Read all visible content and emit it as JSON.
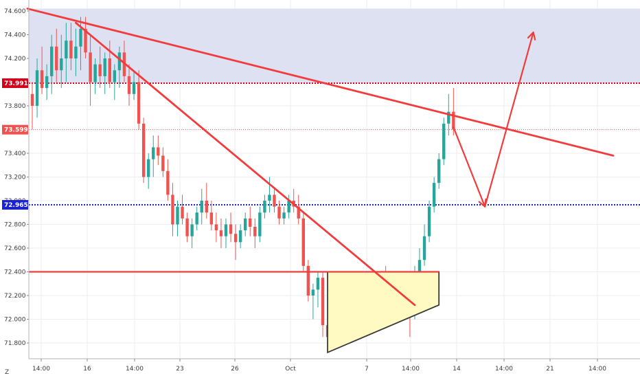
{
  "chart_data": {
    "type": "candlestick",
    "title": "",
    "xlabel": "",
    "ylabel": "",
    "ylim": [
      71.7,
      74.62
    ],
    "y_ticks": [
      "74.600",
      "74.400",
      "74.200",
      "74.000",
      "73.800",
      "73.400",
      "73.200",
      "73.000",
      "72.800",
      "72.600",
      "72.400",
      "72.200",
      "72.000",
      "71.800"
    ],
    "x_ticks": [
      "14:00",
      "16",
      "14:00",
      "23",
      "26",
      "Oct",
      "7",
      "14:00",
      "14",
      "14:00",
      "21",
      "14:00"
    ],
    "corner_label": "Z",
    "grid": true,
    "colors": {
      "up": "#26a69a",
      "down": "#ef5350",
      "drawing": "#f23b3b",
      "zone_fill": "#dde1f2",
      "triangle_fill": "#fffac2",
      "triangle_edge": "#3a3a3a",
      "level_red": "#d0021b",
      "level_blue": "#1a22d8"
    },
    "price_levels": [
      {
        "value": 73.991,
        "label": "73.991",
        "color": "#d0021b",
        "style": "dotted-thick"
      },
      {
        "value": 73.599,
        "label": "73.599",
        "color": "#ef5350",
        "style": "dotted-thin"
      },
      {
        "value": 72.965,
        "label": "72.965",
        "color": "#1a22d8",
        "style": "dotted-thick"
      }
    ],
    "resistance_zone": {
      "from": 73.991,
      "to": 74.62
    },
    "horizontal_support": 72.4,
    "candles": [
      [
        73.9,
        74.0,
        73.6,
        73.8
      ],
      [
        73.8,
        74.2,
        73.7,
        74.1
      ],
      [
        74.1,
        74.3,
        73.9,
        73.95
      ],
      [
        73.95,
        74.15,
        73.85,
        74.05
      ],
      [
        74.05,
        74.4,
        73.9,
        74.3
      ],
      [
        74.3,
        74.45,
        74.0,
        74.1
      ],
      [
        74.1,
        74.4,
        73.95,
        74.2
      ],
      [
        74.2,
        74.5,
        74.0,
        74.35
      ],
      [
        74.35,
        74.5,
        74.1,
        74.2
      ],
      [
        74.2,
        74.45,
        74.05,
        74.3
      ],
      [
        74.3,
        74.55,
        74.1,
        74.45
      ],
      [
        74.45,
        74.55,
        74.2,
        74.25
      ],
      [
        74.25,
        74.4,
        73.8,
        74.0
      ],
      [
        74.0,
        74.2,
        73.9,
        74.15
      ],
      [
        74.15,
        74.3,
        73.95,
        74.05
      ],
      [
        74.05,
        74.25,
        73.9,
        74.2
      ],
      [
        74.2,
        74.35,
        73.95,
        74.0
      ],
      [
        74.0,
        74.15,
        73.85,
        74.1
      ],
      [
        74.1,
        74.3,
        73.95,
        74.25
      ],
      [
        74.25,
        74.35,
        74.0,
        74.05
      ],
      [
        74.05,
        74.15,
        73.8,
        73.9
      ],
      [
        73.9,
        74.1,
        73.85,
        74.0
      ],
      [
        74.0,
        74.1,
        73.6,
        73.65
      ],
      [
        73.65,
        73.7,
        73.15,
        73.2
      ],
      [
        73.2,
        73.4,
        73.1,
        73.35
      ],
      [
        73.35,
        73.55,
        73.2,
        73.45
      ],
      [
        73.45,
        73.55,
        73.3,
        73.38
      ],
      [
        73.38,
        73.45,
        73.2,
        73.25
      ],
      [
        73.25,
        73.35,
        73.0,
        73.05
      ],
      [
        73.05,
        73.15,
        72.7,
        72.8
      ],
      [
        72.8,
        73.0,
        72.7,
        72.95
      ],
      [
        72.95,
        73.05,
        72.8,
        72.85
      ],
      [
        72.85,
        72.9,
        72.65,
        72.7
      ],
      [
        72.7,
        72.85,
        72.6,
        72.8
      ],
      [
        72.8,
        72.95,
        72.75,
        72.9
      ],
      [
        72.9,
        73.1,
        72.8,
        73.0
      ],
      [
        73.0,
        73.15,
        72.85,
        72.9
      ],
      [
        72.9,
        73.0,
        72.75,
        72.8
      ],
      [
        72.8,
        72.9,
        72.65,
        72.75
      ],
      [
        72.75,
        72.85,
        72.6,
        72.7
      ],
      [
        72.7,
        72.85,
        72.6,
        72.8
      ],
      [
        72.8,
        72.9,
        72.65,
        72.72
      ],
      [
        72.72,
        72.8,
        72.5,
        72.65
      ],
      [
        72.65,
        72.8,
        72.6,
        72.75
      ],
      [
        72.75,
        72.9,
        72.7,
        72.85
      ],
      [
        72.85,
        72.95,
        72.7,
        72.78
      ],
      [
        72.78,
        72.85,
        72.6,
        72.7
      ],
      [
        72.7,
        72.95,
        72.65,
        72.9
      ],
      [
        72.9,
        73.05,
        72.85,
        73.0
      ],
      [
        73.0,
        73.2,
        72.9,
        73.05
      ],
      [
        73.05,
        73.1,
        72.9,
        72.95
      ],
      [
        72.95,
        73.0,
        72.8,
        72.85
      ],
      [
        72.85,
        72.95,
        72.8,
        72.9
      ],
      [
        72.9,
        73.05,
        72.85,
        73.0
      ],
      [
        73.0,
        73.1,
        72.9,
        72.95
      ],
      [
        72.95,
        73.05,
        72.8,
        72.85
      ],
      [
        72.85,
        72.9,
        72.4,
        72.45
      ],
      [
        72.45,
        72.5,
        72.15,
        72.2
      ],
      [
        72.2,
        72.3,
        72.0,
        72.25
      ],
      [
        72.25,
        72.4,
        72.1,
        72.35
      ],
      [
        72.35,
        72.4,
        71.85,
        71.95
      ],
      [
        71.95,
        72.05,
        71.75,
        71.85
      ],
      [
        71.85,
        72.0,
        71.78,
        71.95
      ],
      [
        71.95,
        72.1,
        71.85,
        72.0
      ],
      [
        72.0,
        72.15,
        71.9,
        72.05
      ],
      [
        72.05,
        72.2,
        71.95,
        72.1
      ],
      [
        72.1,
        72.3,
        72.05,
        72.25
      ],
      [
        72.25,
        72.4,
        72.15,
        72.35
      ],
      [
        72.35,
        72.4,
        72.15,
        72.2
      ],
      [
        72.2,
        72.3,
        72.05,
        72.15
      ],
      [
        72.15,
        72.25,
        72.0,
        72.05
      ],
      [
        72.05,
        72.2,
        72.0,
        72.15
      ],
      [
        72.15,
        72.4,
        72.1,
        72.35
      ],
      [
        72.35,
        72.45,
        72.2,
        72.25
      ],
      [
        72.25,
        72.35,
        72.05,
        72.1
      ],
      [
        72.1,
        72.2,
        72.0,
        72.15
      ],
      [
        72.15,
        72.35,
        72.1,
        72.3
      ],
      [
        72.3,
        72.4,
        72.15,
        72.2
      ],
      [
        72.2,
        72.3,
        71.85,
        72.05
      ],
      [
        72.05,
        72.45,
        72.0,
        72.4
      ],
      [
        72.4,
        72.6,
        72.3,
        72.5
      ],
      [
        72.5,
        72.8,
        72.45,
        72.7
      ],
      [
        72.7,
        73.0,
        72.65,
        72.95
      ],
      [
        72.95,
        73.2,
        72.9,
        73.15
      ],
      [
        73.15,
        73.4,
        73.1,
        73.35
      ],
      [
        73.35,
        73.7,
        73.3,
        73.65
      ],
      [
        73.65,
        73.9,
        73.55,
        73.75
      ],
      [
        73.75,
        73.95,
        73.55,
        73.6
      ]
    ],
    "projection_path": [
      {
        "index": 87,
        "value": 73.62
      },
      {
        "index": 93.5,
        "value": 72.95
      },
      {
        "index": 103.5,
        "value": 74.42
      }
    ],
    "trendlines": [
      {
        "from": {
          "index": -1,
          "value": 74.62
        },
        "to": {
          "index": 120,
          "value": 73.38
        }
      },
      {
        "from": {
          "index": 9,
          "value": 74.5
        },
        "to": {
          "index": 79,
          "value": 72.12
        }
      }
    ],
    "triangle": {
      "points": [
        {
          "index": 61,
          "value": 72.4
        },
        {
          "index": 84,
          "value": 72.4
        },
        {
          "index": 84,
          "value": 72.12
        },
        {
          "index": 61,
          "value": 71.72
        }
      ]
    }
  }
}
